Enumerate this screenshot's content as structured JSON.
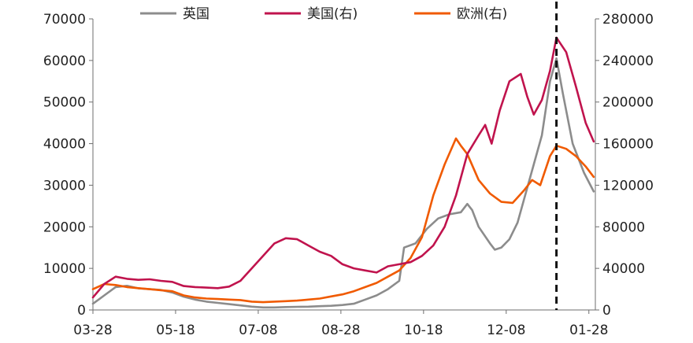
{
  "chart_data": {
    "type": "line",
    "title": "",
    "xlabel": "",
    "ylabel_left": "",
    "ylabel_right": "",
    "x_ticks": [
      "03-28",
      "05-18",
      "07-08",
      "08-28",
      "10-18",
      "12-08",
      "01-28"
    ],
    "x_range": [
      "03-28",
      "02-01"
    ],
    "y_left_range": [
      0,
      70000
    ],
    "y_left_ticks": [
      0,
      10000,
      20000,
      30000,
      40000,
      50000,
      60000,
      70000
    ],
    "y_right_range": [
      0,
      280000
    ],
    "y_right_ticks": [
      0,
      40000,
      80000,
      120000,
      160000,
      200000,
      240000,
      280000
    ],
    "grid": false,
    "legend_position": "top",
    "reference_line_date": "01-08",
    "series": [
      {
        "name": "英国",
        "axis": "left",
        "color": "#8c8c8c",
        "points": [
          [
            "03-28",
            1500
          ],
          [
            "04-04",
            3500
          ],
          [
            "04-11",
            5500
          ],
          [
            "04-18",
            5800
          ],
          [
            "04-25",
            5200
          ],
          [
            "05-02",
            5000
          ],
          [
            "05-09",
            4800
          ],
          [
            "05-16",
            4200
          ],
          [
            "05-23",
            3200
          ],
          [
            "05-30",
            2500
          ],
          [
            "06-06",
            2000
          ],
          [
            "06-13",
            1700
          ],
          [
            "06-20",
            1400
          ],
          [
            "06-27",
            1100
          ],
          [
            "07-04",
            800
          ],
          [
            "07-11",
            600
          ],
          [
            "07-18",
            600
          ],
          [
            "07-25",
            700
          ],
          [
            "08-01",
            750
          ],
          [
            "08-08",
            800
          ],
          [
            "08-15",
            900
          ],
          [
            "08-22",
            1000
          ],
          [
            "08-29",
            1200
          ],
          [
            "09-05",
            1500
          ],
          [
            "09-12",
            2500
          ],
          [
            "09-19",
            3500
          ],
          [
            "09-26",
            5000
          ],
          [
            "10-03",
            7000
          ],
          [
            "10-06",
            15000
          ],
          [
            "10-13",
            16000
          ],
          [
            "10-20",
            19500
          ],
          [
            "10-27",
            22000
          ],
          [
            "11-03",
            23000
          ],
          [
            "11-10",
            23500
          ],
          [
            "11-14",
            25500
          ],
          [
            "11-17",
            24000
          ],
          [
            "11-21",
            20000
          ],
          [
            "11-28",
            16000
          ],
          [
            "12-01",
            14500
          ],
          [
            "12-05",
            15000
          ],
          [
            "12-10",
            17000
          ],
          [
            "12-15",
            21000
          ],
          [
            "12-20",
            28000
          ],
          [
            "12-25",
            35000
          ],
          [
            "12-30",
            42000
          ],
          [
            "01-04",
            55000
          ],
          [
            "01-08",
            60500
          ],
          [
            "01-12",
            52000
          ],
          [
            "01-18",
            40000
          ],
          [
            "01-25",
            33000
          ],
          [
            "01-31",
            28500
          ]
        ]
      },
      {
        "name": "美国(右)",
        "axis": "right",
        "color": "#c0134d",
        "points": [
          [
            "03-28",
            12000
          ],
          [
            "04-04",
            25000
          ],
          [
            "04-11",
            32000
          ],
          [
            "04-18",
            30000
          ],
          [
            "04-25",
            29000
          ],
          [
            "05-02",
            29500
          ],
          [
            "05-09",
            28000
          ],
          [
            "05-16",
            27000
          ],
          [
            "05-23",
            23000
          ],
          [
            "05-30",
            22000
          ],
          [
            "06-06",
            21500
          ],
          [
            "06-13",
            21000
          ],
          [
            "06-20",
            22500
          ],
          [
            "06-27",
            28000
          ],
          [
            "07-04",
            40000
          ],
          [
            "07-11",
            52000
          ],
          [
            "07-18",
            64000
          ],
          [
            "07-25",
            69000
          ],
          [
            "08-01",
            68000
          ],
          [
            "08-08",
            62000
          ],
          [
            "08-15",
            56000
          ],
          [
            "08-22",
            52000
          ],
          [
            "08-29",
            44000
          ],
          [
            "09-05",
            40000
          ],
          [
            "09-12",
            38000
          ],
          [
            "09-19",
            36000
          ],
          [
            "09-26",
            42000
          ],
          [
            "10-03",
            44000
          ],
          [
            "10-10",
            46000
          ],
          [
            "10-17",
            52000
          ],
          [
            "10-24",
            62000
          ],
          [
            "10-31",
            80000
          ],
          [
            "11-07",
            110000
          ],
          [
            "11-14",
            150000
          ],
          [
            "11-21",
            168000
          ],
          [
            "11-25",
            178000
          ],
          [
            "11-29",
            160000
          ],
          [
            "12-04",
            192000
          ],
          [
            "12-10",
            220000
          ],
          [
            "12-17",
            227000
          ],
          [
            "12-21",
            205000
          ],
          [
            "12-25",
            188000
          ],
          [
            "12-30",
            202000
          ],
          [
            "01-04",
            230000
          ],
          [
            "01-08",
            262000
          ],
          [
            "01-14",
            248000
          ],
          [
            "01-20",
            215000
          ],
          [
            "01-26",
            180000
          ],
          [
            "01-31",
            162000
          ]
        ]
      },
      {
        "name": "欧洲(右)",
        "axis": "right",
        "color": "#f05a00",
        "points": [
          [
            "03-28",
            20000
          ],
          [
            "04-04",
            25000
          ],
          [
            "04-11",
            24000
          ],
          [
            "04-18",
            22000
          ],
          [
            "04-25",
            21000
          ],
          [
            "05-02",
            20000
          ],
          [
            "05-09",
            19000
          ],
          [
            "05-16",
            18000
          ],
          [
            "05-23",
            14000
          ],
          [
            "05-30",
            12000
          ],
          [
            "06-06",
            11000
          ],
          [
            "06-13",
            10500
          ],
          [
            "06-20",
            10000
          ],
          [
            "06-27",
            9500
          ],
          [
            "07-04",
            8000
          ],
          [
            "07-11",
            7500
          ],
          [
            "07-18",
            8000
          ],
          [
            "07-25",
            8500
          ],
          [
            "08-01",
            9000
          ],
          [
            "08-08",
            10000
          ],
          [
            "08-15",
            11000
          ],
          [
            "08-22",
            13000
          ],
          [
            "08-29",
            15000
          ],
          [
            "09-05",
            18000
          ],
          [
            "09-12",
            22000
          ],
          [
            "09-19",
            26000
          ],
          [
            "09-26",
            32000
          ],
          [
            "10-03",
            38000
          ],
          [
            "10-10",
            50000
          ],
          [
            "10-17",
            70000
          ],
          [
            "10-24",
            110000
          ],
          [
            "10-31",
            140000
          ],
          [
            "11-07",
            165000
          ],
          [
            "11-10",
            158000
          ],
          [
            "11-14",
            150000
          ],
          [
            "11-21",
            125000
          ],
          [
            "11-28",
            112000
          ],
          [
            "12-05",
            104000
          ],
          [
            "12-12",
            103000
          ],
          [
            "12-19",
            115000
          ],
          [
            "12-24",
            125000
          ],
          [
            "12-29",
            120000
          ],
          [
            "01-04",
            148000
          ],
          [
            "01-08",
            158000
          ],
          [
            "01-14",
            155000
          ],
          [
            "01-20",
            148000
          ],
          [
            "01-26",
            138000
          ],
          [
            "01-31",
            128000
          ]
        ]
      }
    ]
  }
}
